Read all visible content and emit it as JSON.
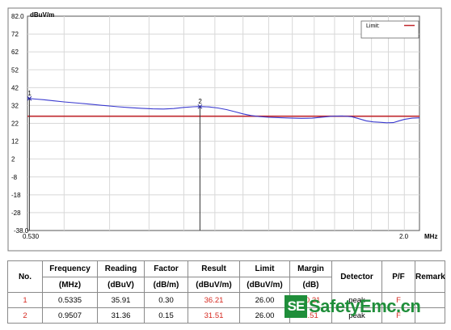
{
  "chart_data": {
    "type": "line",
    "y_unit": "dBuV/m",
    "x_unit": "MHz",
    "ylim": [
      -38,
      82
    ],
    "xlim": [
      0.53,
      2.0
    ],
    "x_scale": "log",
    "x_ticks": [
      "0.530",
      "2.0"
    ],
    "y_ticks": [
      {
        "value": 82,
        "label": "82.0"
      },
      {
        "value": 72,
        "label": "72"
      },
      {
        "value": 62,
        "label": "62"
      },
      {
        "value": 52,
        "label": "52"
      },
      {
        "value": 42,
        "label": "42"
      },
      {
        "value": 32,
        "label": "32"
      },
      {
        "value": 22,
        "label": "22"
      },
      {
        "value": 12,
        "label": "12"
      },
      {
        "value": 2,
        "label": "2"
      },
      {
        "value": -8,
        "label": "-8"
      },
      {
        "value": -18,
        "label": "-18"
      },
      {
        "value": -28,
        "label": "-28"
      },
      {
        "value": -38,
        "label": "-38.0"
      }
    ],
    "grid": true,
    "legend": {
      "position": "top-right",
      "entries": [
        {
          "label": "Limit:",
          "color": "#c0272d"
        }
      ]
    },
    "limit": {
      "name": "Limit:",
      "value": 26,
      "color": "#c0272d"
    },
    "series": [
      {
        "color": "#3a3ad0",
        "points": [
          [
            0.53,
            36.0
          ],
          [
            0.545,
            35.6
          ],
          [
            0.56,
            35.2
          ],
          [
            0.58,
            34.6
          ],
          [
            0.6,
            34.0
          ],
          [
            0.63,
            33.3
          ],
          [
            0.66,
            32.6
          ],
          [
            0.69,
            31.9
          ],
          [
            0.72,
            31.3
          ],
          [
            0.75,
            30.8
          ],
          [
            0.78,
            30.4
          ],
          [
            0.81,
            30.1
          ],
          [
            0.84,
            30.0
          ],
          [
            0.87,
            30.3
          ],
          [
            0.9,
            30.9
          ],
          [
            0.93,
            31.3
          ],
          [
            0.9507,
            31.4
          ],
          [
            0.98,
            31.2
          ],
          [
            1.01,
            30.6
          ],
          [
            1.04,
            29.7
          ],
          [
            1.07,
            28.5
          ],
          [
            1.1,
            27.3
          ],
          [
            1.13,
            26.4
          ],
          [
            1.16,
            25.8
          ],
          [
            1.2,
            25.4
          ],
          [
            1.24,
            25.2
          ],
          [
            1.29,
            25.0
          ],
          [
            1.34,
            24.8
          ],
          [
            1.39,
            24.9
          ],
          [
            1.44,
            25.5
          ],
          [
            1.49,
            26.0
          ],
          [
            1.54,
            26.1
          ],
          [
            1.59,
            25.7
          ],
          [
            1.63,
            24.6
          ],
          [
            1.67,
            23.4
          ],
          [
            1.71,
            22.8
          ],
          [
            1.75,
            22.6
          ],
          [
            1.79,
            22.3
          ],
          [
            1.83,
            22.4
          ],
          [
            1.86,
            23.2
          ],
          [
            1.9,
            24.2
          ],
          [
            1.95,
            24.9
          ],
          [
            2.0,
            25.1
          ]
        ]
      }
    ],
    "markers": [
      {
        "label": "1",
        "x": 0.5335,
        "y": 35.91
      },
      {
        "label": "2",
        "x": 0.9507,
        "y": 31.36
      }
    ]
  },
  "table": {
    "headers": [
      "No.",
      "Frequency",
      "Reading",
      "Factor",
      "Result",
      "Limit",
      "Margin",
      "Detector",
      "P/F",
      "Remark"
    ],
    "units": [
      "",
      "(MHz)",
      "(dBuV)",
      "(dB/m)",
      "(dBuV/m)",
      "(dBuV/m)",
      "(dB)",
      "",
      "",
      ""
    ],
    "rows": [
      [
        "1",
        "0.5335",
        "35.91",
        "0.30",
        "36.21",
        "26.00",
        "10.21",
        "peak",
        "F",
        ""
      ],
      [
        "2",
        "0.9507",
        "31.36",
        "0.15",
        "31.51",
        "26.00",
        "5.51",
        "peak",
        "F",
        ""
      ]
    ]
  },
  "watermark": {
    "badge": "SE",
    "text": "SafetyEmc.cn"
  }
}
